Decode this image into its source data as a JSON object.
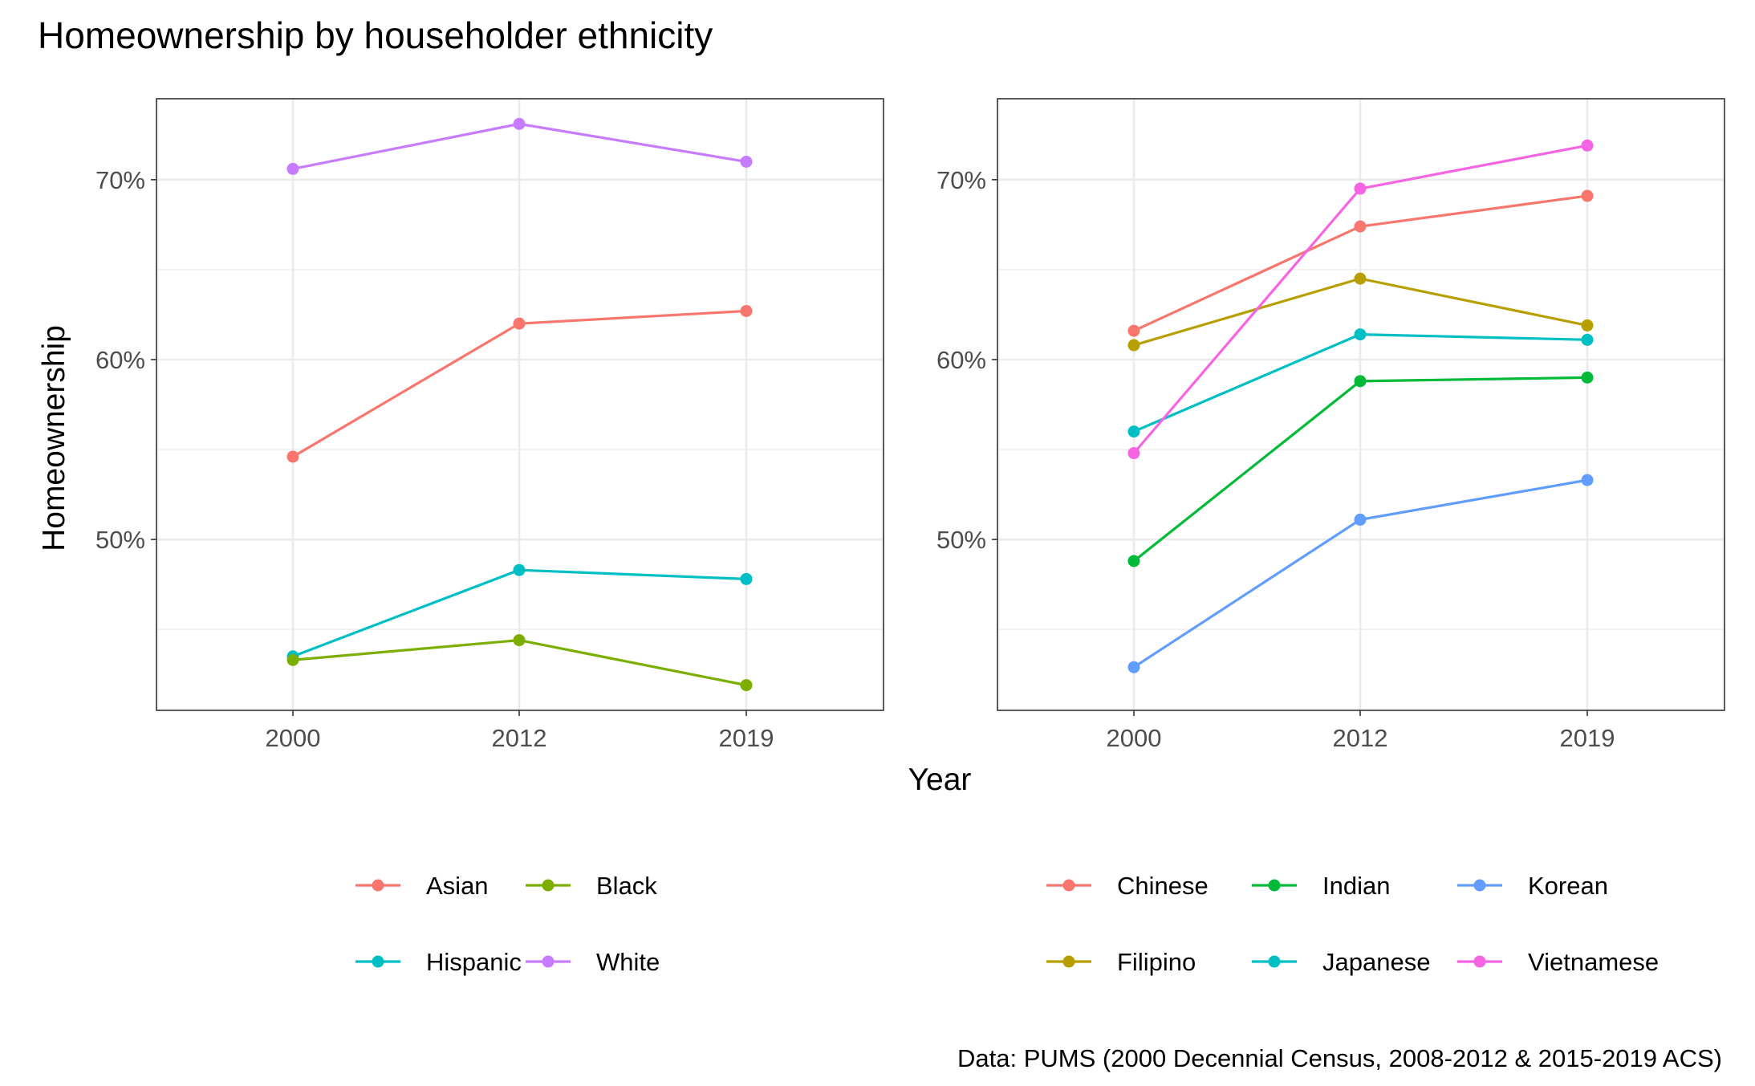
{
  "title": "Homeownership by householder ethnicity",
  "ylabel": "Homeownership",
  "xlabel": "Year",
  "caption": "Data: PUMS (2000 Decennial Census, 2008-2012 & 2015-2019 ACS)",
  "chart_data": [
    {
      "type": "line",
      "x": [
        "2000",
        "2012",
        "2019"
      ],
      "ylim": [
        0.405,
        0.745
      ],
      "yticks": [
        0.5,
        0.6,
        0.7
      ],
      "ytick_labels": [
        "50%",
        "60%",
        "70%"
      ],
      "grid": true,
      "legend_position": "bottom",
      "series": [
        {
          "name": "Asian",
          "color": "#F8766D",
          "values": [
            0.546,
            0.62,
            0.627
          ]
        },
        {
          "name": "Hispanic",
          "color": "#00BFC4",
          "values": [
            0.435,
            0.483,
            0.478
          ]
        },
        {
          "name": "Black",
          "color": "#7CAE00",
          "values": [
            0.433,
            0.444,
            0.419
          ]
        },
        {
          "name": "White",
          "color": "#C77CFF",
          "values": [
            0.706,
            0.731,
            0.71
          ]
        }
      ]
    },
    {
      "type": "line",
      "x": [
        "2000",
        "2012",
        "2019"
      ],
      "ylim": [
        0.405,
        0.745
      ],
      "yticks": [
        0.5,
        0.6,
        0.7
      ],
      "ytick_labels": [
        "50%",
        "60%",
        "70%"
      ],
      "grid": true,
      "legend_position": "bottom",
      "series": [
        {
          "name": "Chinese",
          "color": "#F8766D",
          "values": [
            0.616,
            0.674,
            0.691
          ]
        },
        {
          "name": "Filipino",
          "color": "#B79F00",
          "values": [
            0.608,
            0.645,
            0.619
          ]
        },
        {
          "name": "Indian",
          "color": "#00BA38",
          "values": [
            0.488,
            0.588,
            0.59
          ]
        },
        {
          "name": "Japanese",
          "color": "#00BFC4",
          "values": [
            0.56,
            0.614,
            0.611
          ]
        },
        {
          "name": "Korean",
          "color": "#619CFF",
          "values": [
            0.429,
            0.511,
            0.533
          ]
        },
        {
          "name": "Vietnamese",
          "color": "#F564E3",
          "values": [
            0.548,
            0.695,
            0.719
          ]
        }
      ]
    }
  ]
}
